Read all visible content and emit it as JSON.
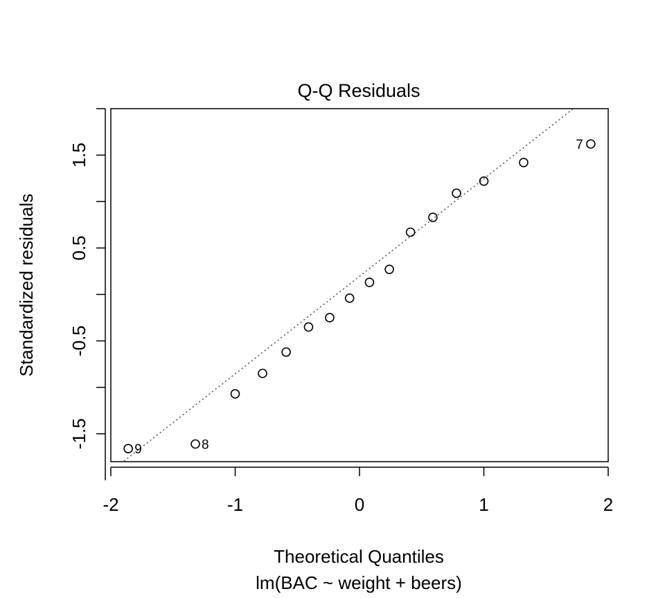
{
  "chart_data": {
    "type": "scatter",
    "title": "Q-Q Residuals",
    "xlabel": "Theoretical Quantiles",
    "subtitle": "lm(BAC ~ weight + beers)",
    "ylabel": "Standardized residuals",
    "xlim": [
      -2.0,
      2.0
    ],
    "ylim": [
      -1.8,
      2.0
    ],
    "xticks": [
      -2,
      -1,
      0,
      1,
      2
    ],
    "xtick_labels": [
      "-2",
      "-1",
      "0",
      "1",
      "2"
    ],
    "yticks": [
      -2.0,
      -1.5,
      -1.0,
      -0.5,
      0.0,
      0.5,
      1.0,
      1.5,
      2.0
    ],
    "ytick_labels": [
      "",
      "-1.5",
      "",
      "-0.5",
      "",
      "0.5",
      "",
      "1.5",
      ""
    ],
    "points": [
      {
        "x": -1.86,
        "y": -1.66,
        "label": "9"
      },
      {
        "x": -1.32,
        "y": -1.61,
        "label": "8"
      },
      {
        "x": -1.0,
        "y": -1.07,
        "label": ""
      },
      {
        "x": -0.78,
        "y": -0.85,
        "label": ""
      },
      {
        "x": -0.59,
        "y": -0.62,
        "label": ""
      },
      {
        "x": -0.41,
        "y": -0.35,
        "label": ""
      },
      {
        "x": -0.24,
        "y": -0.25,
        "label": ""
      },
      {
        "x": -0.08,
        "y": -0.04,
        "label": ""
      },
      {
        "x": 0.08,
        "y": 0.13,
        "label": ""
      },
      {
        "x": 0.24,
        "y": 0.27,
        "label": ""
      },
      {
        "x": 0.41,
        "y": 0.67,
        "label": ""
      },
      {
        "x": 0.59,
        "y": 0.83,
        "label": ""
      },
      {
        "x": 0.78,
        "y": 1.09,
        "label": ""
      },
      {
        "x": 1.0,
        "y": 1.22,
        "label": ""
      },
      {
        "x": 1.32,
        "y": 1.42,
        "label": ""
      },
      {
        "x": 1.86,
        "y": 1.62,
        "label": "7"
      }
    ],
    "reference_line": {
      "style": "dotted",
      "color": "#555555",
      "intercept": 0.195,
      "slope": 1.05
    },
    "grid": false,
    "legend": "none"
  }
}
